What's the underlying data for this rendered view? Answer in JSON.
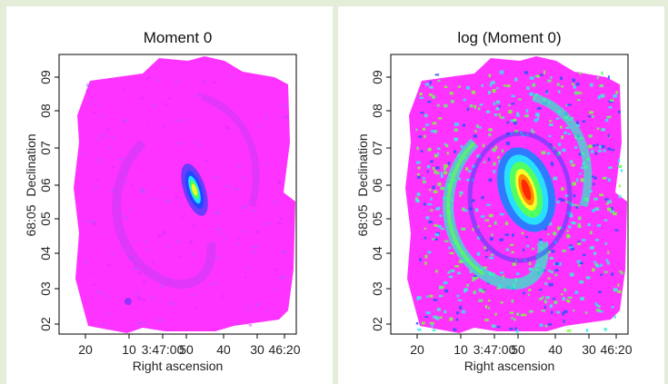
{
  "page": {
    "background": "#e3edd8",
    "panel_background": "#ffffff"
  },
  "chart_data": [
    {
      "type": "heatmap",
      "title": "Moment 0",
      "xlabel": "Right ascension",
      "ylabel": "Declination",
      "xticks": [
        "20",
        "10",
        "3:47:00",
        "50",
        "40",
        "30",
        "46:20"
      ],
      "yticks": [
        "02",
        "03",
        "04",
        "05",
        "06",
        "07",
        "08",
        "09"
      ],
      "ytick_special": "68:05",
      "colormap": "rainbow (magenta → blue → cyan → green → yellow → red)",
      "background_color": "#ff33ff",
      "peak_color": "#ff2a00",
      "scale": "linear"
    },
    {
      "type": "heatmap",
      "title": "log (Moment 0)",
      "xlabel": "Right ascension",
      "ylabel": "Declination",
      "xticks": [
        "20",
        "10",
        "3:47:00",
        "50",
        "40",
        "30",
        "46:20"
      ],
      "yticks": [
        "02",
        "03",
        "04",
        "05",
        "06",
        "07",
        "08",
        "09"
      ],
      "ytick_special": "68:05",
      "colormap": "rainbow (magenta → blue → cyan → green → yellow → red)",
      "background_color": "#ff33ff",
      "peak_color": "#ff2a00",
      "scale": "log"
    }
  ]
}
